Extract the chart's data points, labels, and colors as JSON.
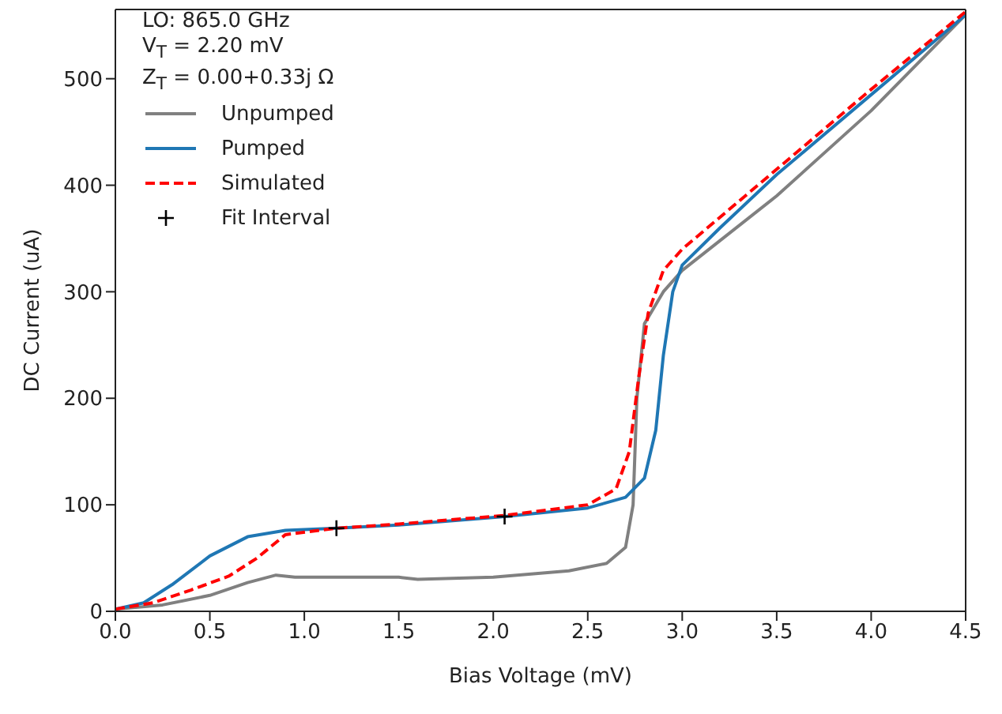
{
  "chart_data": {
    "type": "line",
    "xlabel": "Bias Voltage (mV)",
    "ylabel": "DC Current (uA)",
    "annotations": [
      "LO: 865.0 GHz",
      "V$_{T}$ = 2.20 mV",
      "Z$_{T}$ = 0.00+0.33j Ω"
    ],
    "xlim": [
      0,
      4.5
    ],
    "xticks": [
      {
        "value": 0,
        "label": "0.0"
      },
      {
        "value": 0.5,
        "label": "0.5"
      },
      {
        "value": 1,
        "label": "1.0"
      },
      {
        "value": 1.5,
        "label": "1.5"
      },
      {
        "value": 2,
        "label": "2.0"
      },
      {
        "value": 2.5,
        "label": "2.5"
      },
      {
        "value": 3,
        "label": "3.0"
      },
      {
        "value": 3.5,
        "label": "3.5"
      },
      {
        "value": 4,
        "label": "4.0"
      },
      {
        "value": 4.5,
        "label": "4.5"
      }
    ],
    "ylim": [
      0,
      565
    ],
    "yticks": [
      0,
      100,
      200,
      300,
      400,
      500
    ],
    "grid": false,
    "legend": "top left",
    "series": [
      {
        "name": "Unpumped",
        "color": "#808080",
        "line_style": "solid",
        "marker": "none",
        "x": [
          0,
          0.25,
          0.5,
          0.7,
          0.85,
          0.95,
          1.5,
          1.6,
          2.0,
          2.4,
          2.6,
          2.7,
          2.74,
          2.76,
          2.8,
          2.9,
          3.0,
          3.5,
          4.0,
          4.5
        ],
        "values": [
          2,
          6,
          15,
          27,
          34,
          32,
          32,
          30,
          32,
          38,
          45,
          60,
          100,
          200,
          270,
          300,
          320,
          390,
          470,
          560
        ]
      },
      {
        "name": "Pumped",
        "color": "#1f77b4",
        "line_style": "solid",
        "marker": "none",
        "x": [
          0,
          0.15,
          0.3,
          0.5,
          0.7,
          0.9,
          1.17,
          1.5,
          2.06,
          2.5,
          2.7,
          2.8,
          2.86,
          2.9,
          2.95,
          3.0,
          3.2,
          3.5,
          4.0,
          4.5
        ],
        "values": [
          2,
          8,
          25,
          52,
          70,
          76,
          78,
          81,
          89,
          97,
          107,
          125,
          170,
          240,
          300,
          325,
          360,
          410,
          485,
          560
        ]
      },
      {
        "name": "Simulated",
        "color": "#ff0000",
        "line_style": "dashed",
        "marker": "none",
        "x": [
          0,
          0.2,
          0.4,
          0.6,
          0.75,
          0.9,
          1.17,
          1.5,
          2.06,
          2.5,
          2.65,
          2.72,
          2.77,
          2.82,
          2.9,
          3.0,
          3.5,
          4.0,
          4.5
        ],
        "values": [
          2,
          8,
          20,
          33,
          50,
          72,
          78,
          82,
          90,
          100,
          115,
          150,
          220,
          280,
          320,
          340,
          415,
          490,
          563
        ]
      },
      {
        "name": "Fit Interval",
        "type": "scatter",
        "color": "#000000",
        "marker": "cross",
        "x": [
          1.17,
          2.06
        ],
        "values": [
          78,
          89
        ]
      }
    ]
  }
}
